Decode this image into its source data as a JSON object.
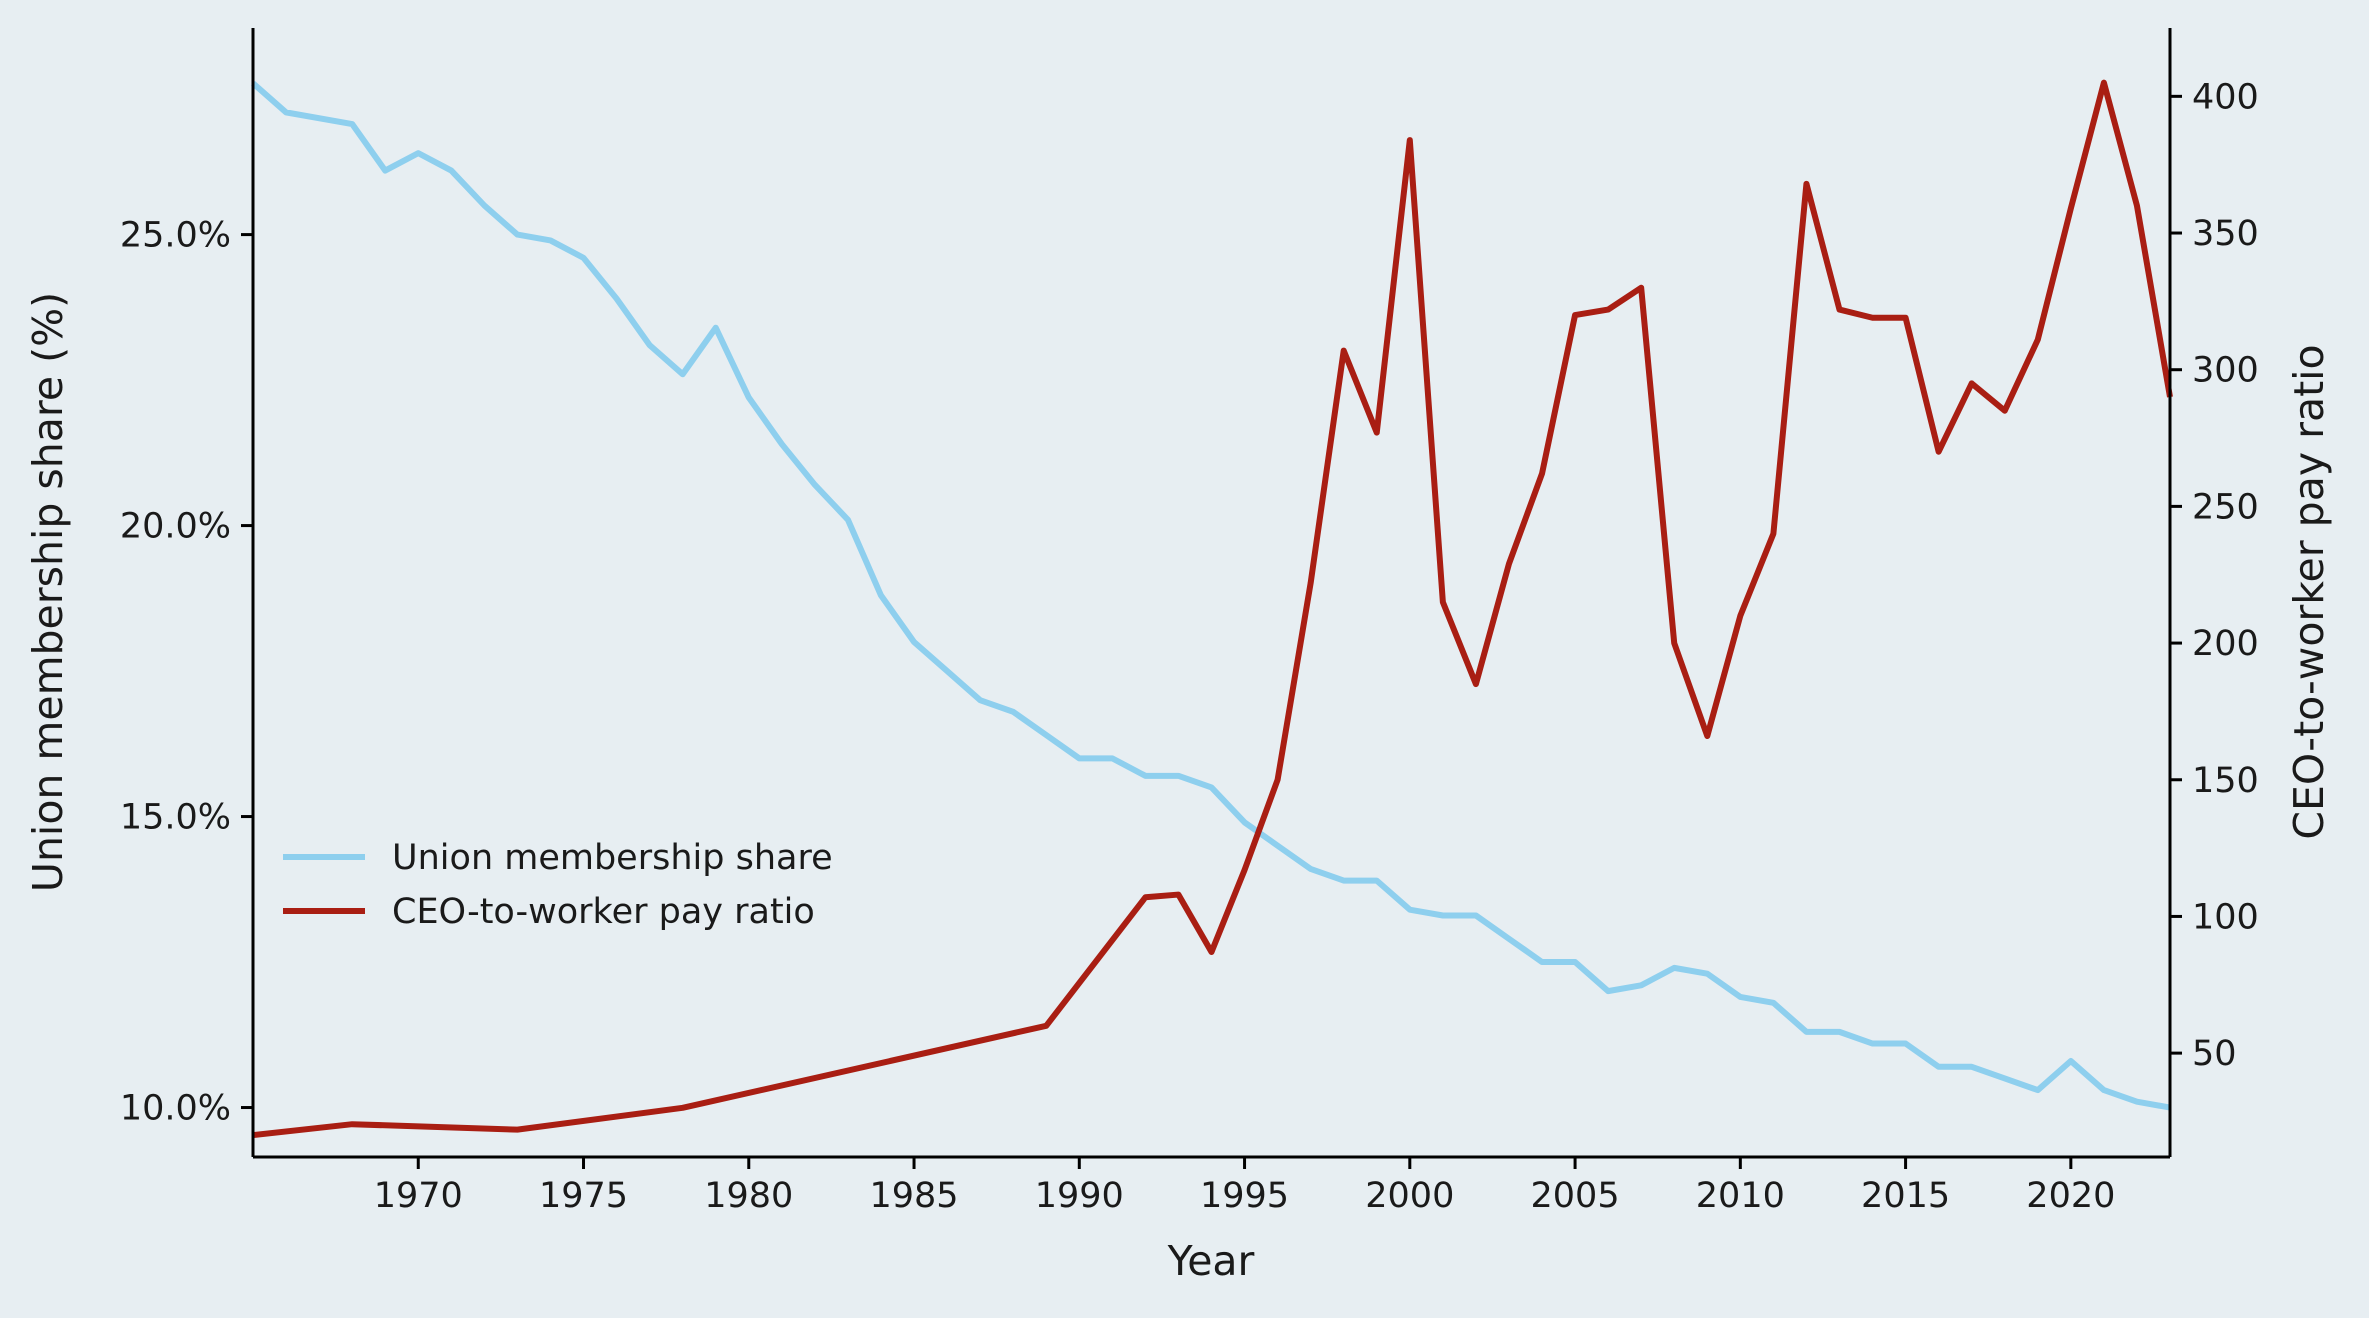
{
  "chart_data": {
    "type": "line",
    "title": "",
    "xlabel": "Year",
    "ylabel": "Union membership share (%)",
    "ylabel_right": "CEO-to-worker pay ratio",
    "xlim": [
      1965,
      2023
    ],
    "ylim": [
      9.15,
      28.55
    ],
    "ylim_right": [
      12,
      425
    ],
    "x_ticks": [
      1970,
      1975,
      1980,
      1985,
      1990,
      1995,
      2000,
      2005,
      2010,
      2015,
      2020
    ],
    "y_ticks": [
      10,
      15,
      20,
      25
    ],
    "y_tick_labels": [
      "10.0%",
      "15.0%",
      "20.0%",
      "25.0%"
    ],
    "y_right_ticks": [
      50,
      100,
      150,
      200,
      250,
      300,
      350,
      400
    ],
    "grid": false,
    "legend_position": "center-left",
    "series": [
      {
        "name": "Union membership share",
        "axis": "left",
        "color": "#8ecfee",
        "x": [
          1965,
          1966,
          1968,
          1969,
          1970,
          1971,
          1972,
          1973,
          1974,
          1975,
          1976,
          1977,
          1978,
          1979,
          1980,
          1981,
          1982,
          1983,
          1984,
          1985,
          1986,
          1987,
          1988,
          1989,
          1990,
          1991,
          1992,
          1993,
          1994,
          1995,
          1996,
          1997,
          1998,
          1999,
          2000,
          2001,
          2002,
          2003,
          2004,
          2005,
          2006,
          2007,
          2008,
          2009,
          2010,
          2011,
          2012,
          2013,
          2014,
          2015,
          2016,
          2017,
          2018,
          2019,
          2020,
          2021,
          2022,
          2023
        ],
        "values": [
          27.6,
          27.1,
          26.9,
          26.1,
          26.4,
          26.1,
          25.5,
          25.0,
          24.9,
          24.6,
          23.9,
          23.1,
          22.6,
          23.4,
          22.2,
          21.4,
          20.7,
          20.1,
          18.8,
          18.0,
          17.5,
          17.0,
          16.8,
          16.4,
          16.0,
          16.0,
          15.7,
          15.7,
          15.5,
          14.9,
          14.5,
          14.1,
          13.9,
          13.9,
          13.4,
          13.3,
          13.3,
          12.9,
          12.5,
          12.5,
          12.0,
          12.1,
          12.4,
          12.3,
          11.9,
          11.8,
          11.3,
          11.3,
          11.1,
          11.1,
          10.7,
          10.7,
          10.5,
          10.3,
          10.8,
          10.3,
          10.1,
          10.0
        ]
      },
      {
        "name": "CEO-to-worker pay ratio",
        "axis": "right",
        "color": "#a91e13",
        "x": [
          1965,
          1968,
          1973,
          1978,
          1989,
          1992,
          1993,
          1994,
          1995,
          1996,
          1997,
          1998,
          1999,
          2000,
          2001,
          2002,
          2003,
          2004,
          2005,
          2006,
          2007,
          2008,
          2009,
          2010,
          2011,
          2012,
          2013,
          2014,
          2015,
          2016,
          2017,
          2018,
          2019,
          2020,
          2021,
          2022,
          2023
        ],
        "values": [
          20,
          24,
          22,
          30,
          60,
          107,
          108,
          87,
          117,
          150,
          222,
          307,
          277,
          384,
          215,
          185,
          229,
          262,
          320,
          322,
          330,
          200,
          166,
          210,
          240,
          368,
          322,
          319,
          319,
          270,
          295,
          285,
          311,
          359,
          405,
          360,
          290
        ]
      }
    ]
  }
}
